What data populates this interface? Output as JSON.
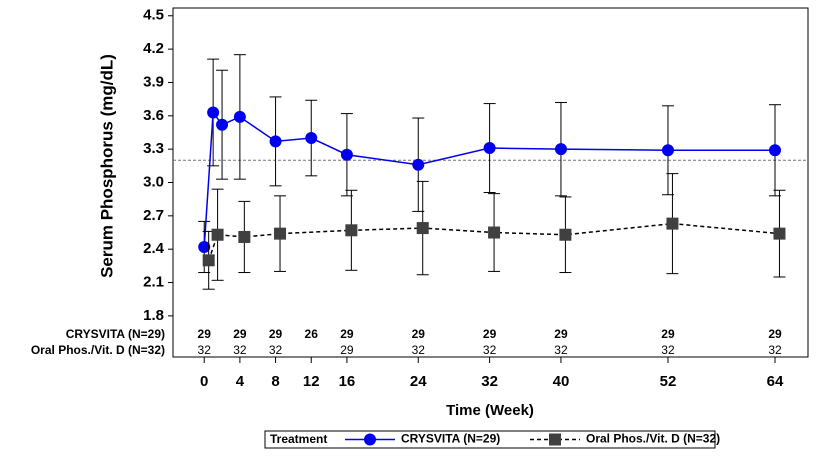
{
  "chart_data": {
    "type": "line",
    "y_label": "Serum Phosphorus (mg/dL)",
    "x_label": "Time (Week)",
    "xlim": [
      -3.5,
      67.7
    ],
    "ylim": [
      1.43,
      4.57
    ],
    "xticks": [
      0,
      4,
      8,
      12,
      16,
      24,
      32,
      40,
      52,
      64
    ],
    "yticks": [
      1.8,
      2.1,
      2.4,
      2.7,
      {
        "value": 3,
        "label": "3.0"
      },
      3.3,
      3.6,
      3.9,
      4.2,
      4.5
    ],
    "reference_line": 3.2,
    "legend_title": "Treatment",
    "series": [
      {
        "name": "CRYSVITA (N=29)",
        "color": "#0000ee",
        "marker": "circle",
        "dash": false,
        "x": [
          0,
          1,
          2,
          4,
          8,
          12,
          16,
          24,
          32,
          40,
          52,
          64
        ],
        "values": [
          2.42,
          3.63,
          3.52,
          3.59,
          3.37,
          3.4,
          3.25,
          3.16,
          3.31,
          3.3,
          3.29,
          3.29
        ],
        "errors": [
          0.23,
          0.48,
          0.49,
          0.56,
          0.4,
          0.34,
          0.37,
          0.42,
          0.4,
          0.42,
          0.4,
          0.41
        ]
      },
      {
        "name": "Oral Phos./Vit. D (N=32)",
        "color": "#404040",
        "marker": "square",
        "dash": true,
        "x": [
          0,
          1,
          4,
          8,
          16,
          24,
          32,
          40,
          52,
          64
        ],
        "values": [
          2.3,
          2.53,
          2.51,
          2.54,
          2.57,
          2.59,
          2.55,
          2.53,
          2.63,
          2.54
        ],
        "errors": [
          0.26,
          0.41,
          0.32,
          0.34,
          0.36,
          0.42,
          0.35,
          0.34,
          0.45,
          0.39
        ]
      }
    ],
    "at_risk": {
      "x": [
        0,
        4,
        8,
        12,
        16,
        24,
        32,
        40,
        52,
        64
      ],
      "rows": [
        {
          "values": [
            29,
            29,
            29,
            26,
            29,
            29,
            29,
            29,
            29,
            29
          ]
        },
        {
          "values": [
            32,
            32,
            32,
            null,
            29,
            32,
            32,
            32,
            32,
            32
          ]
        }
      ]
    }
  }
}
